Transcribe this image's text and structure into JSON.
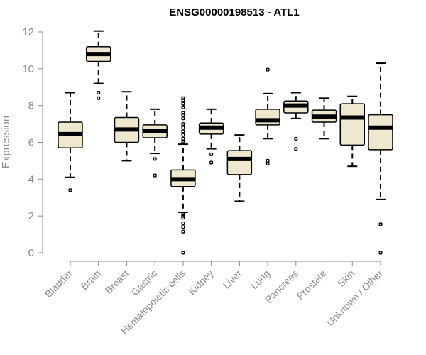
{
  "chart_data": {
    "type": "boxplot",
    "title": "ENSG00000198513 - ATL1",
    "xlabel": "",
    "ylabel": "Expression",
    "ylim": [
      0,
      12
    ],
    "yticks": [
      0,
      2,
      4,
      6,
      8,
      10,
      12
    ],
    "grid": false,
    "box_color": "#efe8cf",
    "categories": [
      "Bladder",
      "Brain",
      "Breast",
      "Gastric",
      "Hematopoietic cells",
      "Kidney",
      "Liver",
      "Lung",
      "Pancreas",
      "Prostate",
      "Skin",
      "Unknown / Other"
    ],
    "boxes": [
      {
        "name": "Bladder",
        "whislo": 4.1,
        "q1": 5.7,
        "med": 6.45,
        "q3": 7.1,
        "whishi": 8.7,
        "outliers": [
          3.4
        ]
      },
      {
        "name": "Brain",
        "whislo": 9.2,
        "q1": 10.4,
        "med": 10.8,
        "q3": 11.2,
        "whishi": 12.05,
        "outliers": [
          8.7,
          8.4
        ]
      },
      {
        "name": "Breast",
        "whislo": 5.0,
        "q1": 6.0,
        "med": 6.7,
        "q3": 7.35,
        "whishi": 8.75,
        "outliers": []
      },
      {
        "name": "Gastric",
        "whislo": 5.4,
        "q1": 6.25,
        "med": 6.6,
        "q3": 6.95,
        "whishi": 7.8,
        "outliers": [
          5.1,
          4.2
        ]
      },
      {
        "name": "Hematopoietic cells",
        "whislo": 2.2,
        "q1": 3.6,
        "med": 4.0,
        "q3": 4.5,
        "whishi": 5.9,
        "outliers": [
          8.4,
          8.3,
          8.1,
          7.9,
          7.6,
          7.5,
          7.3,
          7.0,
          6.8,
          6.6,
          6.4,
          6.2,
          6.05,
          6.0,
          2.1,
          2.0,
          1.9,
          1.6,
          1.4,
          1.15,
          0.0
        ]
      },
      {
        "name": "Kidney",
        "whislo": 5.65,
        "q1": 6.45,
        "med": 6.8,
        "q3": 7.05,
        "whishi": 7.8,
        "outliers": [
          5.35,
          4.9
        ]
      },
      {
        "name": "Liver",
        "whislo": 2.8,
        "q1": 4.25,
        "med": 5.1,
        "q3": 5.55,
        "whishi": 6.4,
        "outliers": []
      },
      {
        "name": "Lung",
        "whislo": 6.2,
        "q1": 6.95,
        "med": 7.2,
        "q3": 7.8,
        "whishi": 8.65,
        "outliers": [
          9.95,
          5.0,
          4.85
        ]
      },
      {
        "name": "Pancreas",
        "whislo": 7.3,
        "q1": 7.6,
        "med": 8.0,
        "q3": 8.25,
        "whishi": 8.7,
        "outliers": [
          6.2,
          5.65
        ]
      },
      {
        "name": "Prostate",
        "whislo": 6.2,
        "q1": 7.1,
        "med": 7.4,
        "q3": 7.75,
        "whishi": 8.4,
        "outliers": []
      },
      {
        "name": "Skin",
        "whislo": 4.7,
        "q1": 5.85,
        "med": 7.35,
        "q3": 8.1,
        "whishi": 8.5,
        "outliers": []
      },
      {
        "name": "Unknown / Other",
        "whislo": 2.9,
        "q1": 5.6,
        "med": 6.8,
        "q3": 7.5,
        "whishi": 10.3,
        "outliers": [
          1.55,
          0.0
        ]
      }
    ]
  }
}
